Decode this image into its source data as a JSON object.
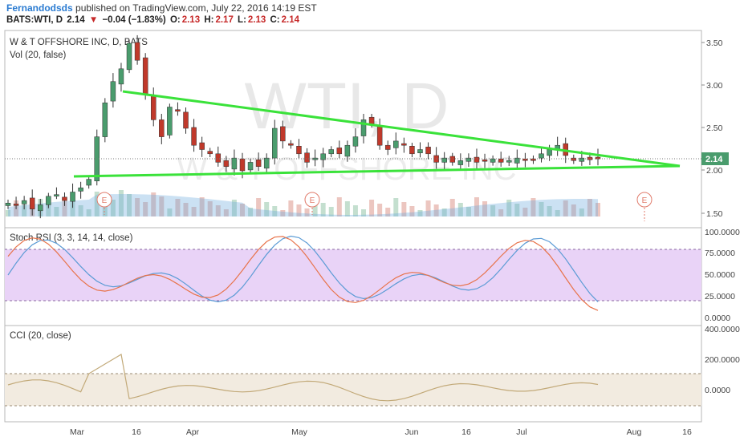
{
  "header": {
    "author": "Fernandodsds",
    "published_text": " published on TradingView.com, July 22, 2016 14:19 EST",
    "symbol": "BATS:WTI, D",
    "last": "2.14",
    "change": "−0.04 (−1.83%)",
    "open_label": "O:",
    "open": "2.13",
    "high_label": "H:",
    "high": "2.17",
    "low_label": "L:",
    "low": "2.13",
    "close_label": "C:",
    "close": "2.14"
  },
  "main_pane": {
    "title": "W & T OFFSHORE INC, D, BATS",
    "volume_label": "Vol (20, false)",
    "watermark_symbol": "WTI, D",
    "watermark_name": "W & T OFFSHORE INC",
    "price_ticks": [
      "3.50",
      "3.00",
      "2.50",
      "2.00",
      "1.50"
    ],
    "last_price_badge": "2.14",
    "earnings_marker": "E"
  },
  "stoch_pane": {
    "title": "Stoch RSI (3, 3, 14, 14, close)",
    "ticks": [
      "100.0000",
      "75.0000",
      "50.0000",
      "25.0000",
      "0.0000"
    ]
  },
  "cci_pane": {
    "title": "CCI (20, close)",
    "ticks": [
      "400.0000",
      "200.0000",
      "0.0000"
    ]
  },
  "x_axis": {
    "ticks": [
      "Mar",
      "16",
      "Apr",
      "May",
      "Jun",
      "16",
      "Jul",
      "Aug",
      "16"
    ]
  },
  "colors": {
    "candle_up": "#4a9c6d",
    "candle_down": "#c0392b",
    "trendline": "#3ae23a",
    "stoch_k": "#5b9bd5",
    "stoch_d": "#e8734a",
    "stoch_band": "#e9d3f7",
    "cci_line": "#c2a978",
    "cci_band": "#f2ebe0",
    "badge": "#4a9c6d"
  },
  "chart_data": {
    "type": "candlestick",
    "approx_close": [
      1.62,
      1.6,
      1.65,
      1.55,
      1.6,
      1.7,
      1.72,
      1.65,
      1.75,
      1.8,
      1.9,
      2.4,
      2.8,
      3.05,
      3.2,
      3.5,
      3.3,
      2.9,
      2.6,
      2.4,
      2.75,
      2.7,
      2.5,
      2.3,
      2.25,
      2.2,
      2.1,
      2.05,
      2.15,
      2.0,
      2.1,
      2.05,
      2.15,
      2.5,
      2.35,
      2.3,
      2.2,
      2.1,
      2.15,
      2.2,
      2.25,
      2.2,
      2.3,
      2.4,
      2.6,
      2.55,
      2.3,
      2.25,
      2.35,
      2.3,
      2.2,
      2.25,
      2.2,
      2.1,
      2.15,
      2.1,
      2.12,
      2.15,
      2.1,
      2.12,
      2.14,
      2.1,
      2.12,
      2.15,
      2.13,
      2.12,
      2.2,
      2.25,
      2.3,
      2.18,
      2.12,
      2.15,
      2.13,
      2.14
    ]
  }
}
